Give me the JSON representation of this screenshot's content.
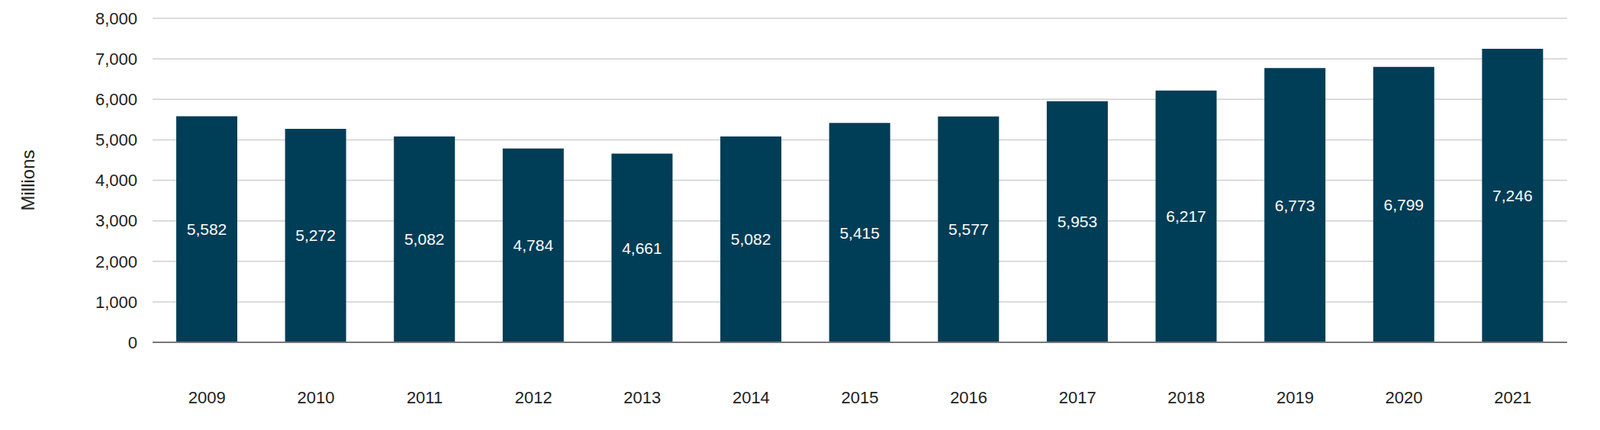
{
  "chart_data": {
    "type": "bar",
    "y_label": "Millions",
    "categories": [
      "2009",
      "2010",
      "2011",
      "2012",
      "2013",
      "2014",
      "2015",
      "2016",
      "2017",
      "2018",
      "2019",
      "2020",
      "2021"
    ],
    "values": [
      5582,
      5272,
      5082,
      4784,
      4661,
      5082,
      5415,
      5577,
      5953,
      6217,
      6773,
      6799,
      7246
    ],
    "value_labels": [
      "5,582",
      "5,272",
      "5,082",
      "4,784",
      "4,661",
      "5,082",
      "5,415",
      "5,577",
      "5,953",
      "6,217",
      "6,773",
      "6,799",
      "7,246"
    ],
    "color": "#003d57",
    "ylim": [
      0,
      8000
    ],
    "yticks": [
      0,
      {
        "value": 1000,
        "label": "1,000"
      },
      {
        "value": 2000,
        "label": "2,000"
      },
      {
        "value": 3000,
        "label": "3,000"
      },
      {
        "value": 4000,
        "label": "4,000"
      },
      {
        "value": 5000,
        "label": "5,000"
      },
      {
        "value": 6000,
        "label": "6,000"
      },
      {
        "value": 7000,
        "label": "7,000"
      },
      {
        "value": 8000,
        "label": "8,000"
      }
    ],
    "grid": true,
    "data_labels": true
  }
}
